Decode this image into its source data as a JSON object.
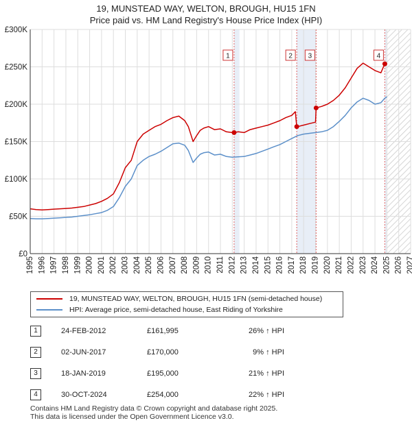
{
  "title_line1": "19, MUNSTEAD WAY, WELTON, BROUGH, HU15 1FN",
  "title_line2": "Price paid vs. HM Land Registry's House Price Index (HPI)",
  "legend": {
    "property": "19, MUNSTEAD WAY, WELTON, BROUGH, HU15 1FN (semi-detached house)",
    "hpi": "HPI: Average price, semi-detached house, East Riding of Yorkshire"
  },
  "colors": {
    "property": "#cc0000",
    "hpi": "#5b8fc9",
    "highlight": "#e8eef7",
    "grid": "#dddddd"
  },
  "transactions": [
    {
      "n": "1",
      "date": "24-FEB-2012",
      "price": "£161,995",
      "hpi": "26% ↑ HPI"
    },
    {
      "n": "2",
      "date": "02-JUN-2017",
      "price": "£170,000",
      "hpi": "9% ↑ HPI"
    },
    {
      "n": "3",
      "date": "18-JAN-2019",
      "price": "£195,000",
      "hpi": "21% ↑ HPI"
    },
    {
      "n": "4",
      "date": "30-OCT-2024",
      "price": "£254,000",
      "hpi": "22% ↑ HPI"
    }
  ],
  "footer_line1": "Contains HM Land Registry data © Crown copyright and database right 2025.",
  "footer_line2": "This data is licensed under the Open Government Licence v3.0.",
  "chart_data": {
    "type": "line",
    "xlim": [
      1995,
      2027
    ],
    "ylim": [
      0,
      300000
    ],
    "xticks": [
      1995,
      1996,
      1997,
      1998,
      1999,
      2000,
      2001,
      2002,
      2003,
      2004,
      2005,
      2006,
      2007,
      2008,
      2009,
      2010,
      2011,
      2012,
      2013,
      2014,
      2015,
      2016,
      2017,
      2018,
      2019,
      2020,
      2021,
      2022,
      2023,
      2024,
      2025,
      2026,
      2027
    ],
    "yticks": [
      {
        "value": 0,
        "label": "£0"
      },
      {
        "value": 50000,
        "label": "£50K"
      },
      {
        "value": 100000,
        "label": "£100K"
      },
      {
        "value": 150000,
        "label": "£150K"
      },
      {
        "value": 200000,
        "label": "£200K"
      },
      {
        "value": 250000,
        "label": "£250K"
      },
      {
        "value": 300000,
        "label": "£300K"
      }
    ],
    "forecast_from": 2025.0,
    "series": [
      {
        "name": "19, MUNSTEAD WAY, WELTON, BROUGH, HU15 1FN (semi-detached house)",
        "x": [
          1995.0,
          1995.5,
          1996.0,
          1996.5,
          1997.0,
          1997.5,
          1998.0,
          1998.5,
          1999.0,
          1999.5,
          2000.0,
          2000.5,
          2001.0,
          2001.5,
          2002.0,
          2002.5,
          2003.0,
          2003.5,
          2004.0,
          2004.5,
          2005.0,
          2005.5,
          2006.0,
          2006.5,
          2007.0,
          2007.5,
          2008.0,
          2008.3,
          2008.7,
          2009.0,
          2009.3,
          2009.6,
          2010.0,
          2010.5,
          2011.0,
          2011.5,
          2012.0,
          2012.15,
          2012.5,
          2013.0,
          2013.5,
          2014.0,
          2014.5,
          2015.0,
          2015.5,
          2016.0,
          2016.5,
          2017.0,
          2017.3,
          2017.42,
          2017.5,
          2018.0,
          2018.5,
          2019.0,
          2019.05,
          2019.5,
          2020.0,
          2020.5,
          2021.0,
          2021.5,
          2022.0,
          2022.5,
          2023.0,
          2023.5,
          2024.0,
          2024.5,
          2024.83
        ],
        "y": [
          60000,
          59000,
          58500,
          59000,
          59500,
          60000,
          60500,
          61000,
          62000,
          63000,
          65000,
          67000,
          70000,
          74000,
          80000,
          95000,
          115000,
          125000,
          150000,
          160000,
          165000,
          170000,
          173000,
          178000,
          182000,
          184000,
          178000,
          170000,
          150000,
          158000,
          165000,
          168000,
          170000,
          166000,
          167000,
          163000,
          162000,
          161995,
          163000,
          162000,
          166000,
          168000,
          170000,
          172000,
          175000,
          178000,
          182000,
          185000,
          190000,
          170000,
          170000,
          172000,
          174000,
          176000,
          195000,
          197000,
          200000,
          205000,
          212000,
          222000,
          235000,
          248000,
          255000,
          250000,
          245000,
          242000,
          254000
        ]
      },
      {
        "name": "HPI: Average price, semi-detached house, East Riding of Yorkshire",
        "x": [
          1995.0,
          1995.5,
          1996.0,
          1996.5,
          1997.0,
          1997.5,
          1998.0,
          1998.5,
          1999.0,
          1999.5,
          2000.0,
          2000.5,
          2001.0,
          2001.5,
          2002.0,
          2002.5,
          2003.0,
          2003.5,
          2004.0,
          2004.5,
          2005.0,
          2005.5,
          2006.0,
          2006.5,
          2007.0,
          2007.5,
          2008.0,
          2008.3,
          2008.7,
          2009.0,
          2009.3,
          2009.6,
          2010.0,
          2010.5,
          2011.0,
          2011.5,
          2012.0,
          2012.5,
          2013.0,
          2013.5,
          2014.0,
          2014.5,
          2015.0,
          2015.5,
          2016.0,
          2016.5,
          2017.0,
          2017.5,
          2018.0,
          2018.5,
          2019.0,
          2019.5,
          2020.0,
          2020.5,
          2021.0,
          2021.5,
          2022.0,
          2022.5,
          2023.0,
          2023.5,
          2024.0,
          2024.5,
          2024.83,
          2025.0
        ],
        "y": [
          47000,
          46500,
          46500,
          47000,
          47500,
          48000,
          48500,
          49000,
          50000,
          51000,
          52000,
          53500,
          55000,
          58000,
          63000,
          75000,
          90000,
          100000,
          118000,
          125000,
          130000,
          133000,
          137000,
          142000,
          147000,
          148000,
          145000,
          138000,
          122000,
          128000,
          133000,
          135000,
          136000,
          132000,
          133000,
          130000,
          129000,
          129500,
          130000,
          132000,
          134000,
          137000,
          140000,
          143000,
          146000,
          150000,
          154000,
          158000,
          160000,
          161000,
          162000,
          163000,
          165000,
          170000,
          177000,
          185000,
          195000,
          203000,
          208000,
          205000,
          200000,
          202000,
          208000,
          210000
        ]
      }
    ],
    "markers": [
      {
        "label": "1",
        "x": 2012.15,
        "y": 161995
      },
      {
        "label": "2",
        "x": 2017.42,
        "y": 170000
      },
      {
        "label": "3",
        "x": 2019.05,
        "y": 195000
      },
      {
        "label": "4",
        "x": 2024.83,
        "y": 254000
      }
    ],
    "highlight_bands": [
      [
        2012.15,
        2012.6
      ],
      [
        2017.42,
        2019.05
      ],
      [
        2024.83,
        2025.0
      ]
    ]
  }
}
